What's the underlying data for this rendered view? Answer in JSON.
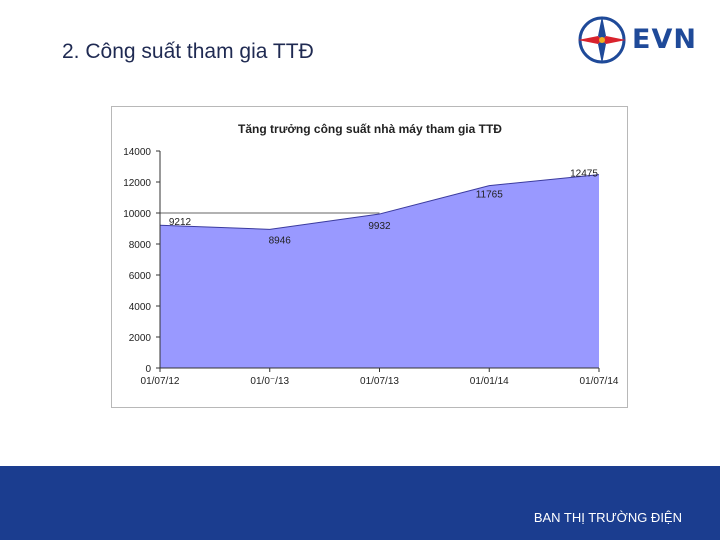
{
  "slide": {
    "title": "2. Công suất tham gia TTĐ",
    "logo_text": "EVN",
    "footer": "BAN THỊ TRƯỜNG ĐIỆN"
  },
  "colors": {
    "area_fill": "#9999ff",
    "area_stroke": "#3b3b9e",
    "footer_bg": "#1b3d8f",
    "logo_blue": "#1f4a99",
    "logo_red": "#d9232d",
    "logo_gold": "#f0b020"
  },
  "chart_data": {
    "type": "area",
    "title": "Tăng trưởng công suất nhà máy tham gia TTĐ",
    "x": [
      "01/07/12",
      "01/01/13",
      "01/07/13",
      "01/01/14",
      "01/07/14"
    ],
    "x_tick_labels": [
      "01/07/12",
      "01/0⁻/13",
      "01/07/13",
      "01/01/14",
      "01/07/14"
    ],
    "series": [
      {
        "values": [
          9212,
          8946,
          9932,
          11765,
          12475
        ]
      }
    ],
    "data_labels": [
      "9212",
      "8946",
      "9932",
      "11765",
      "12475"
    ],
    "ylim": [
      0,
      14000
    ],
    "y_ticks": [
      0,
      2000,
      4000,
      6000,
      8000,
      10000,
      12000,
      14000
    ],
    "reference_line": 10000,
    "xlabel": "",
    "ylabel": "",
    "grid": false,
    "legend": "none"
  }
}
